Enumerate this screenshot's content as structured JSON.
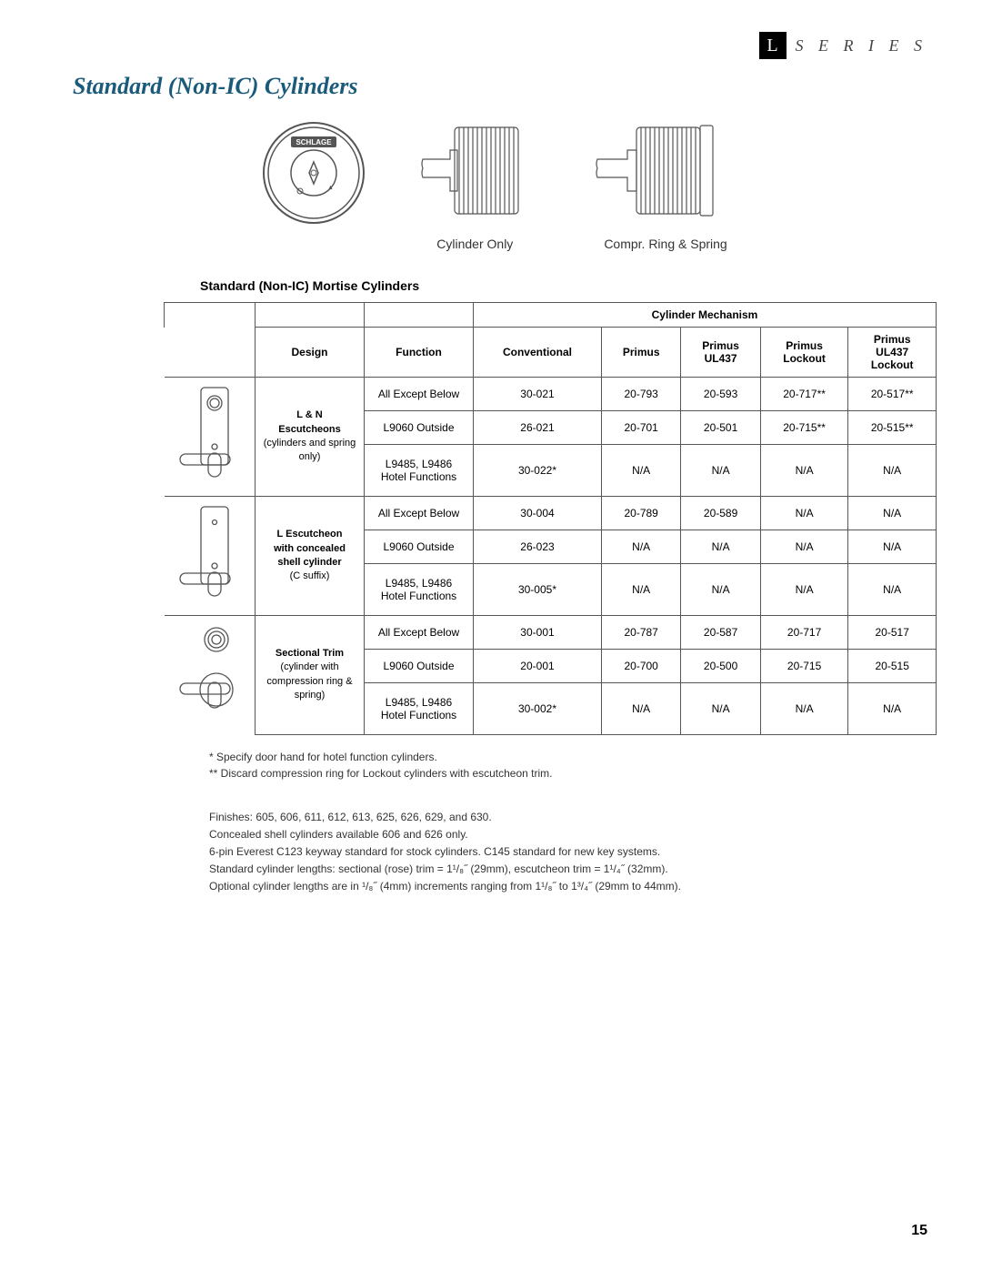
{
  "brand": {
    "l": "L",
    "series": "S E R I E S"
  },
  "title": "Standard (Non-IC) Cylinders",
  "captions": {
    "cyl_only": "Cylinder Only",
    "compr": "Compr. Ring & Spring"
  },
  "section_label": "Standard (Non-IC) Mortise Cylinders",
  "columns": {
    "mechanism": "Cylinder Mechanism",
    "design": "Design",
    "function": "Function",
    "conventional": "Conventional",
    "primus": "Primus",
    "primus_ul437": "Primus\nUL437",
    "primus_lockout": "Primus\nLockout",
    "primus_ul437_lockout": "Primus\nUL437\nLockout"
  },
  "designs": [
    {
      "label_bold": "L & N\nEscutcheons",
      "label_plain": "(cylinders and spring only)",
      "rows": [
        {
          "function": "All Except Below",
          "c0": "30-021",
          "c1": "20-793",
          "c2": "20-593",
          "c3": "20-717**",
          "c4": "20-517**"
        },
        {
          "function": "L9060 Outside",
          "c0": "26-021",
          "c1": "20-701",
          "c2": "20-501",
          "c3": "20-715**",
          "c4": "20-515**"
        },
        {
          "function": "L9485, L9486\nHotel Functions",
          "c0": "30-022*",
          "c1": "N/A",
          "c2": "N/A",
          "c3": "N/A",
          "c4": "N/A"
        }
      ]
    },
    {
      "label_bold": "L Escutcheon\nwith concealed\nshell cylinder",
      "label_plain": "(C suffix)",
      "rows": [
        {
          "function": "All Except Below",
          "c0": "30-004",
          "c1": "20-789",
          "c2": "20-589",
          "c3": "N/A",
          "c4": "N/A"
        },
        {
          "function": "L9060 Outside",
          "c0": "26-023",
          "c1": "N/A",
          "c2": "N/A",
          "c3": "N/A",
          "c4": "N/A"
        },
        {
          "function": "L9485, L9486\nHotel Functions",
          "c0": "30-005*",
          "c1": "N/A",
          "c2": "N/A",
          "c3": "N/A",
          "c4": "N/A"
        }
      ]
    },
    {
      "label_bold": "Sectional Trim",
      "label_plain": "(cylinder with compression ring & spring)",
      "rows": [
        {
          "function": "All Except Below",
          "c0": "30-001",
          "c1": "20-787",
          "c2": "20-587",
          "c3": "20-717",
          "c4": "20-517"
        },
        {
          "function": "L9060 Outside",
          "c0": "20-001",
          "c1": "20-700",
          "c2": "20-500",
          "c3": "20-715",
          "c4": "20-515"
        },
        {
          "function": "L9485, L9486\nHotel Functions",
          "c0": "30-002*",
          "c1": "N/A",
          "c2": "N/A",
          "c3": "N/A",
          "c4": "N/A"
        }
      ]
    }
  ],
  "footnotes": [
    "* Specify door hand for hotel function cylinders.",
    "** Discard compression ring for Lockout cylinders with escutcheon trim."
  ],
  "notes": [
    "Finishes: 605, 606, 611, 612, 613, 625, 626, 629, and 630.",
    "Concealed shell cylinders available 606 and 626 only.",
    "6-pin Everest C123 keyway standard for stock cylinders. C145 standard for new key systems.",
    "Standard cylinder lengths: sectional (rose) trim = 1¹/₈˝ (29mm), escutcheon trim = 1¹/₄˝ (32mm).",
    "Optional cylinder lengths are in ¹/₈˝ (4mm) increments ranging from 1¹/₈˝ to 1³/₄˝ (29mm to 44mm)."
  ],
  "page_number": "15",
  "colors": {
    "title": "#1a5a7a",
    "border": "#555555",
    "text": "#333333"
  }
}
